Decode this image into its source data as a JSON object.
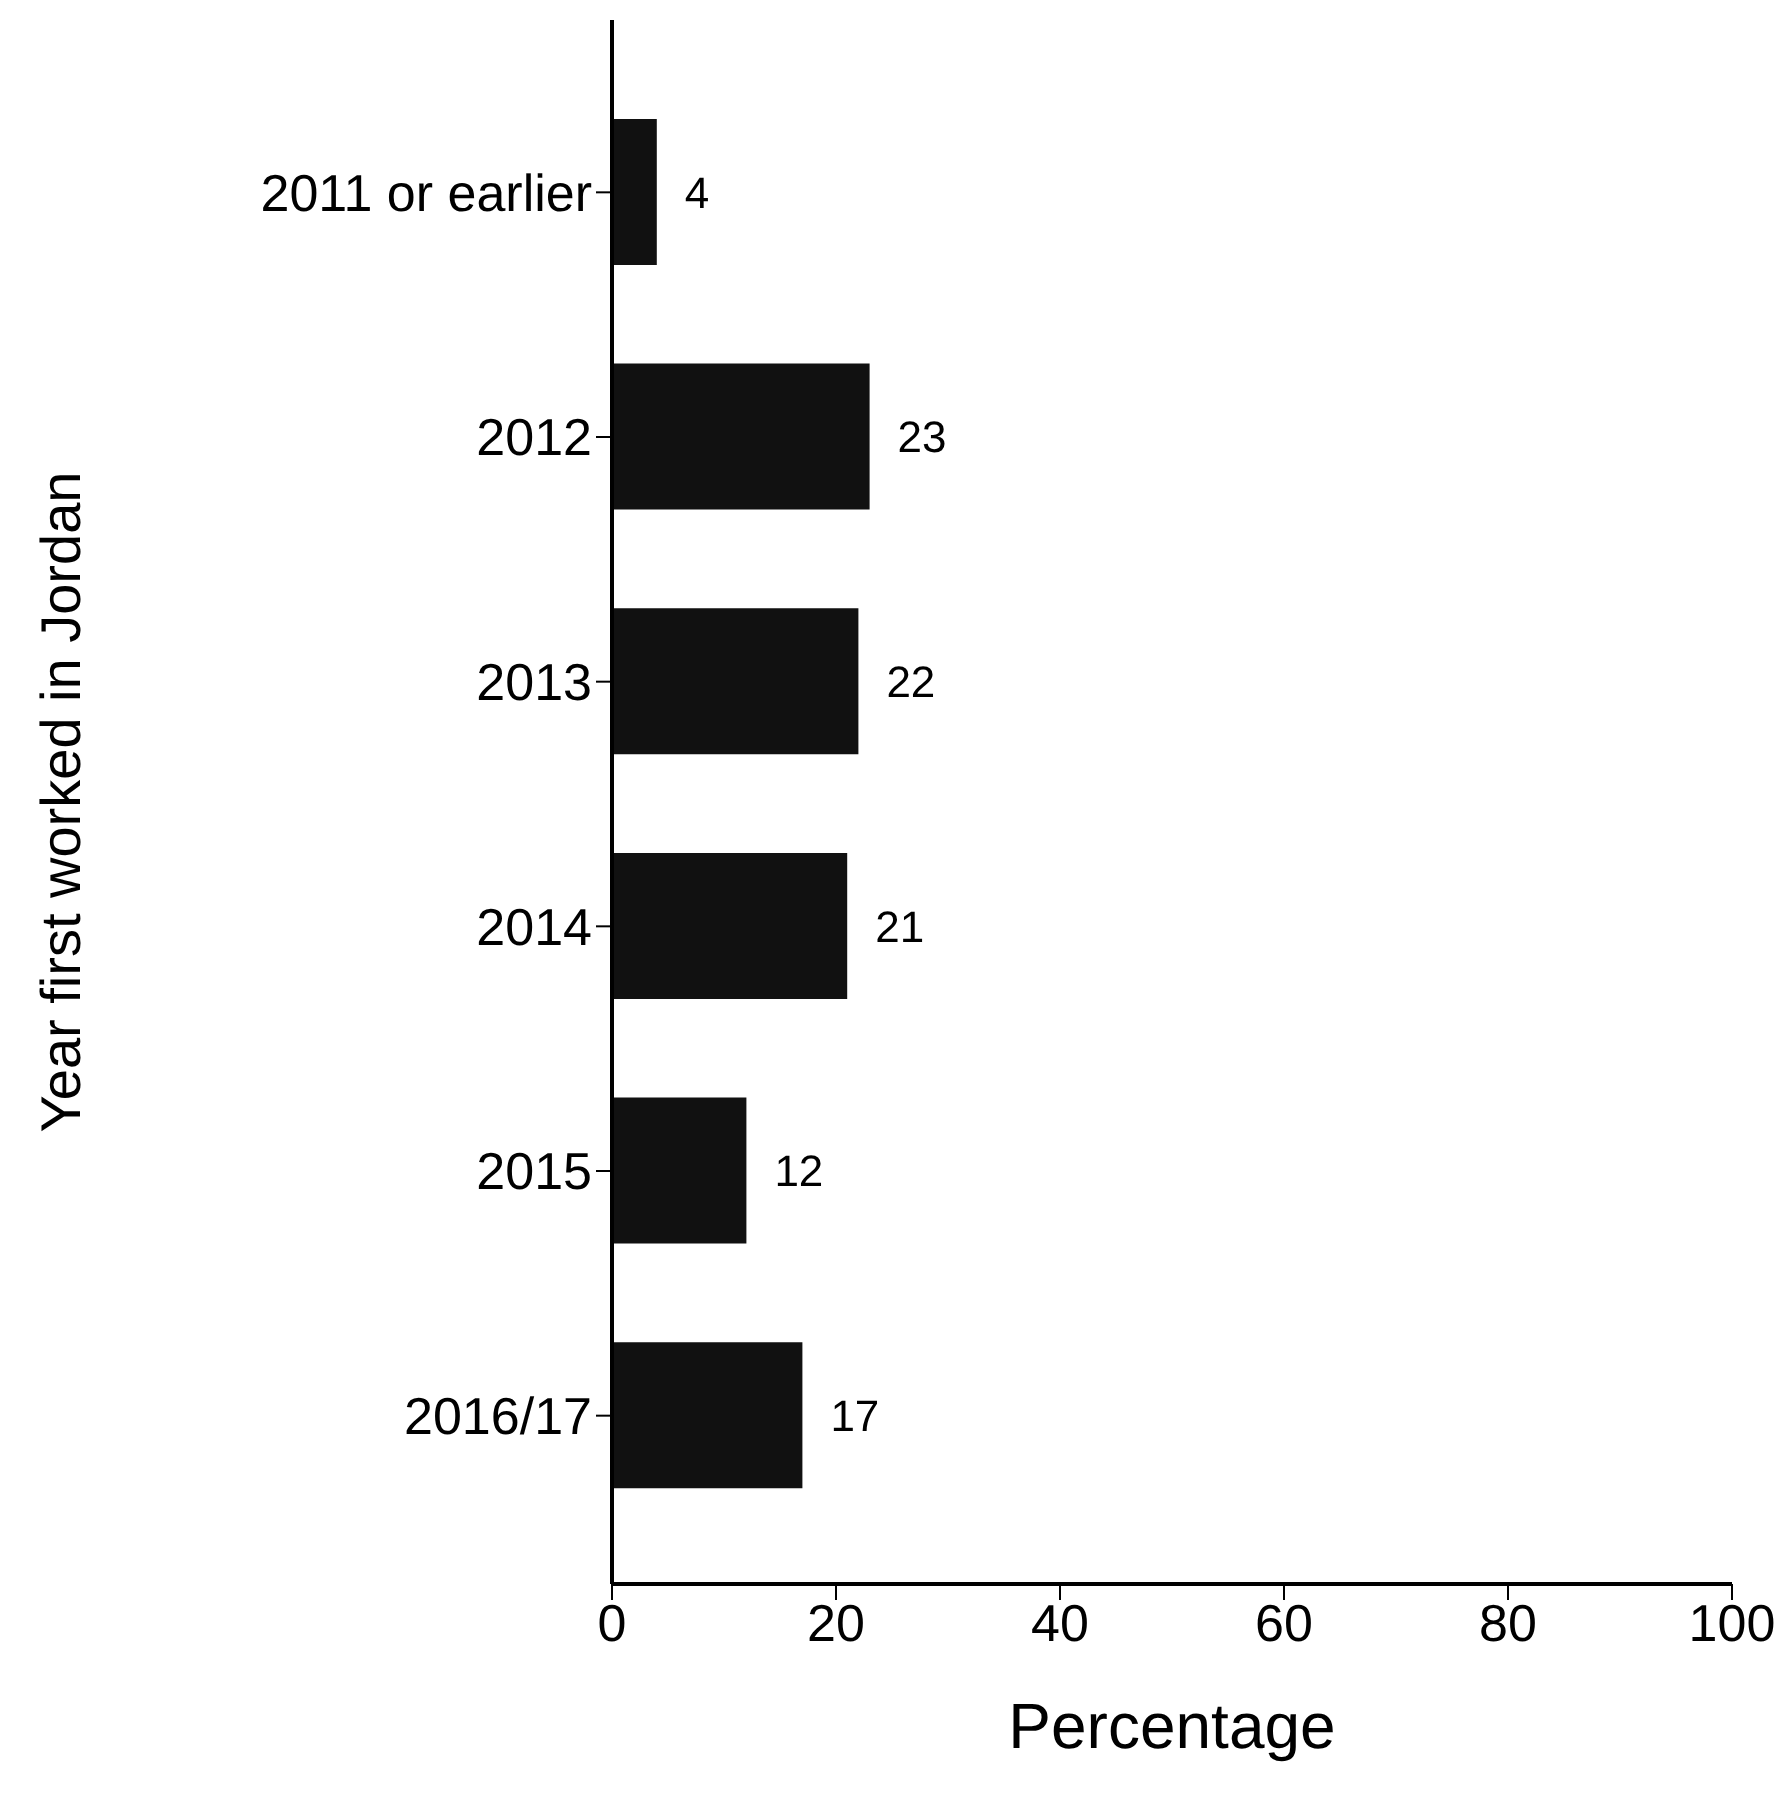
{
  "chart_data": {
    "type": "bar",
    "orientation": "horizontal",
    "xlabel": "Percentage",
    "ylabel": "Year first worked in Jordan",
    "categories": [
      "2011 or earlier",
      "2012",
      "2013",
      "2014",
      "2015",
      "2016/17"
    ],
    "values": [
      4,
      23,
      22,
      21,
      12,
      17
    ],
    "color": "#111111",
    "xlim": [
      0,
      100
    ],
    "xticks": [
      0,
      20,
      40,
      60,
      80,
      100
    ],
    "data_labels": true,
    "grid": false,
    "legend": false
  }
}
